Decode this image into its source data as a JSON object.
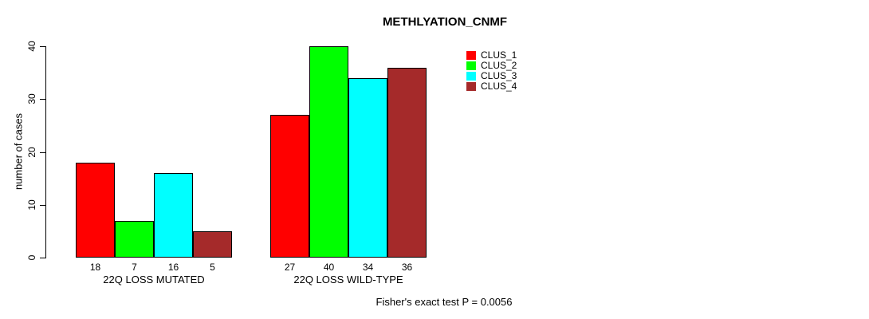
{
  "chart_data": {
    "type": "bar",
    "title": "METHLYATION_CNMF",
    "ylabel": "number of cases",
    "xlabel": "",
    "ylim": [
      0,
      40
    ],
    "yticks": [
      0,
      10,
      20,
      30,
      40
    ],
    "grid": false,
    "background_color": "#ffffff",
    "bar_border_color": "#000000",
    "categories": [
      "22Q LOSS MUTATED",
      "22Q LOSS WILD-TYPE"
    ],
    "series": [
      {
        "name": "CLUS_1",
        "color": "#ff0000",
        "values": [
          18,
          27
        ]
      },
      {
        "name": "CLUS_2",
        "color": "#00ff00",
        "values": [
          7,
          40
        ]
      },
      {
        "name": "CLUS_3",
        "color": "#00ffff",
        "values": [
          16,
          34
        ]
      },
      {
        "name": "CLUS_4",
        "color": "#a52a2a",
        "values": [
          5,
          36
        ]
      }
    ],
    "bar_value_labels_shown": true,
    "legend_position": "top-right",
    "legend_entries": [
      "CLUS_1",
      "CLUS_2",
      "CLUS_3",
      "CLUS_4"
    ],
    "annotation": "Fisher's exact test P = 0.0056"
  }
}
